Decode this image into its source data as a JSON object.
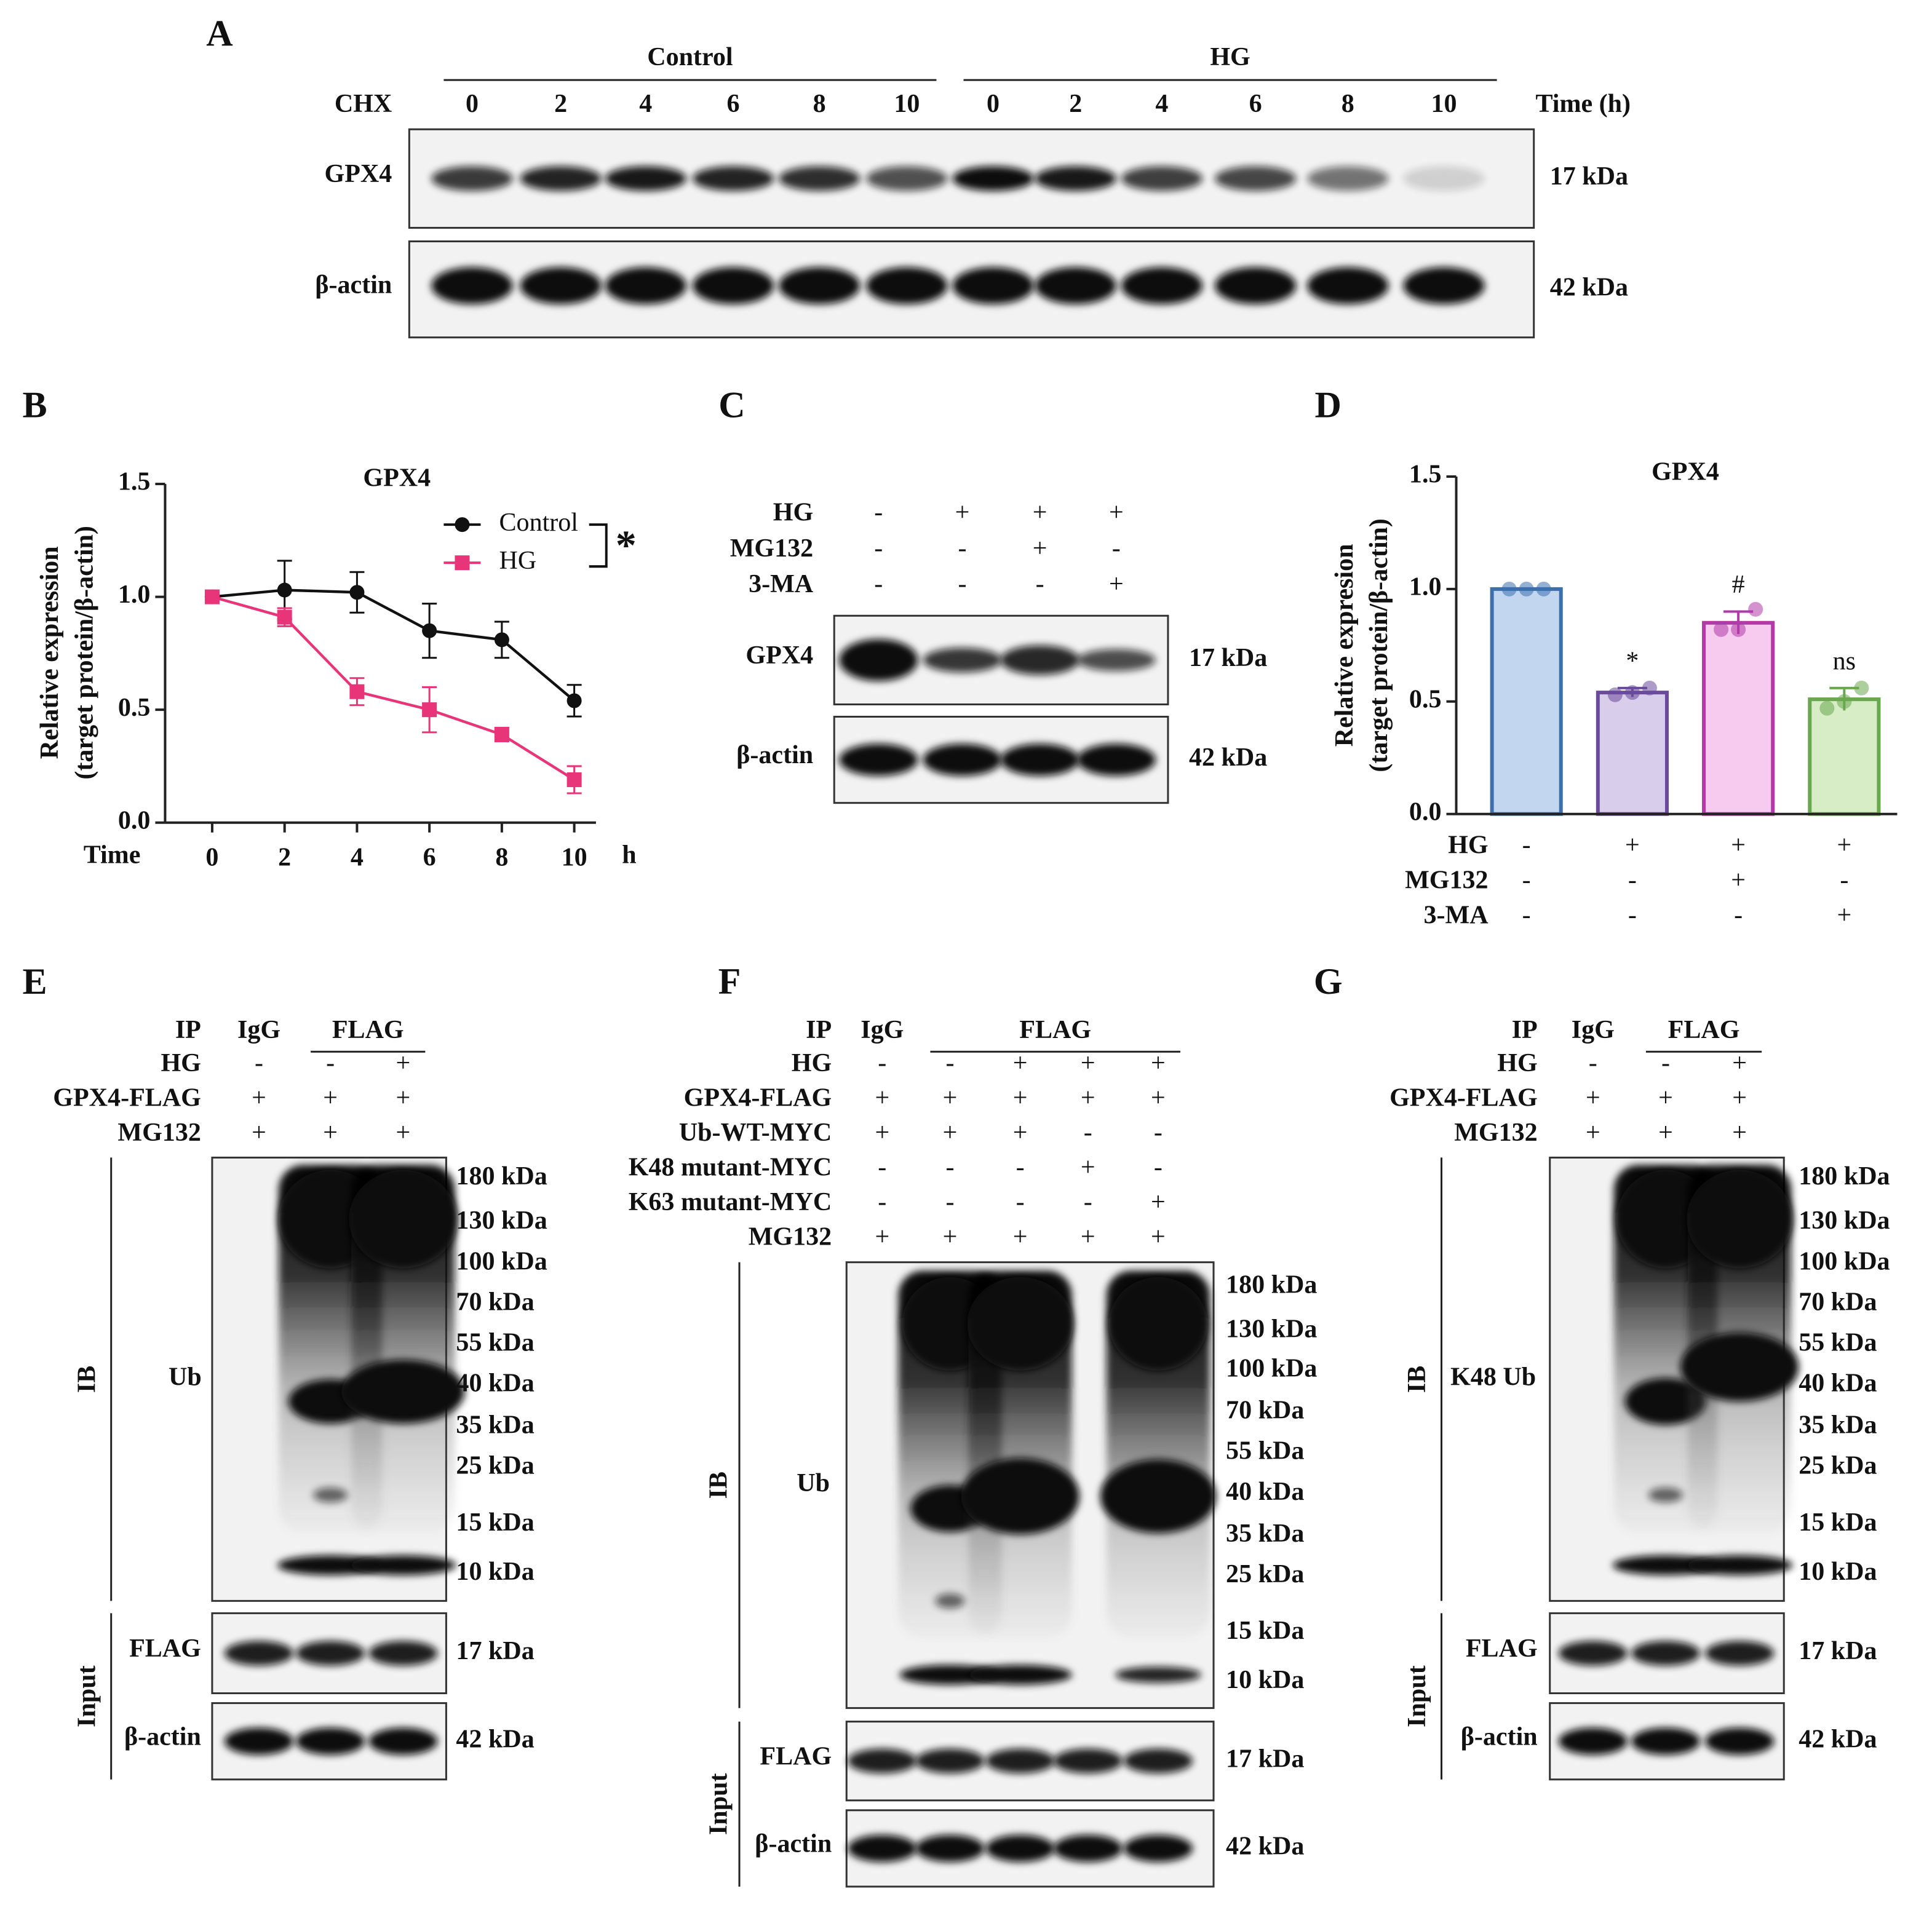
{
  "panel_A": {
    "label": "A",
    "treatment": "CHX",
    "time_unit": "Time (h)",
    "groups": [
      {
        "name": "Control",
        "times": [
          0,
          2,
          4,
          6,
          8,
          10
        ]
      },
      {
        "name": "HG",
        "times": [
          0,
          2,
          4,
          6,
          8,
          10
        ]
      }
    ],
    "blots": [
      {
        "protein": "GPX4",
        "size": "17 kDa"
      },
      {
        "protein": "β-actin",
        "size": "42 kDa"
      }
    ]
  },
  "chart_data": [
    {
      "type": "line",
      "panel_label": "B",
      "title": "GPX4",
      "ylabel": [
        "Relative expression",
        "(target protein/β-actin)"
      ],
      "xlabel": "Time",
      "xunit": "h",
      "x": [
        0,
        2,
        4,
        6,
        8,
        10
      ],
      "series": [
        {
          "name": "Control",
          "color": "#111111",
          "marker": "circle",
          "values": [
            1.0,
            1.03,
            1.02,
            0.85,
            0.81,
            0.54
          ],
          "errors": [
            0,
            0.13,
            0.09,
            0.12,
            0.08,
            0.07
          ]
        },
        {
          "name": "HG",
          "color": "#e8357a",
          "marker": "square",
          "values": [
            1.0,
            0.91,
            0.58,
            0.5,
            0.39,
            0.19
          ],
          "errors": [
            0,
            0.04,
            0.06,
            0.1,
            0.03,
            0.06
          ]
        }
      ],
      "xlim": [
        -1.3,
        10.6
      ],
      "xticks": [
        0,
        2,
        4,
        6,
        8,
        10
      ],
      "ylim": [
        0,
        1.5
      ],
      "yticks": [
        {
          "value": 0,
          "label": "0.0"
        },
        0.5,
        {
          "value": 1,
          "label": "1.0"
        },
        1.5
      ],
      "significance": "*",
      "legend": "upper right"
    },
    {
      "type": "bar",
      "panel_label": "D",
      "title": "GPX4",
      "ylabel": [
        "Relative expresion",
        "(target protein/β-actin)"
      ],
      "values": [
        1.0,
        0.54,
        0.85,
        0.51
      ],
      "errors": [
        0,
        0.02,
        0.05,
        0.05
      ],
      "points": [
        [
          1.0,
          1.0,
          1.0
        ],
        [
          0.53,
          0.54,
          0.56
        ],
        [
          0.82,
          0.82,
          0.91
        ],
        [
          0.47,
          0.5,
          0.56
        ]
      ],
      "annotations": [
        null,
        "*",
        "#",
        "ns"
      ],
      "colors": [
        "#c3d6ef",
        "#d9cdec",
        "#f6cbef",
        "#d6edc6"
      ],
      "edge_colors": [
        "#3d6fae",
        "#6a4a9a",
        "#b03aa8",
        "#6aa84f"
      ],
      "treatments": [
        {
          "name": "HG",
          "signs": [
            "-",
            "+",
            "+",
            "+"
          ]
        },
        {
          "name": "MG132",
          "signs": [
            "-",
            "-",
            "+",
            "-"
          ]
        },
        {
          "name": "3-MA",
          "signs": [
            "-",
            "-",
            "-",
            "+"
          ]
        }
      ],
      "ylim": [
        0,
        1.5
      ],
      "yticks": [
        {
          "value": 0,
          "label": "0.0"
        },
        0.5,
        {
          "value": 1,
          "label": "1.0"
        },
        1.5
      ]
    }
  ],
  "panel_C": {
    "label": "C",
    "conditions": [
      {
        "name": "HG",
        "signs": [
          "-",
          "+",
          "+",
          "+"
        ]
      },
      {
        "name": "MG132",
        "signs": [
          "-",
          "-",
          "+",
          "-"
        ]
      },
      {
        "name": "3-MA",
        "signs": [
          "-",
          "-",
          "-",
          "+"
        ]
      }
    ],
    "blots": [
      {
        "protein": "GPX4",
        "size": "17 kDa"
      },
      {
        "protein": "β-actin",
        "size": "42 kDa"
      }
    ]
  },
  "panel_E": {
    "label": "E",
    "ip": {
      "name": "IP",
      "groups": [
        "IgG",
        "FLAG"
      ]
    },
    "conditions": [
      {
        "name": "HG",
        "signs": [
          "-",
          "-",
          "+"
        ]
      },
      {
        "name": "GPX4-FLAG",
        "signs": [
          "+",
          "+",
          "+"
        ]
      },
      {
        "name": "MG132",
        "signs": [
          "+",
          "+",
          "+"
        ]
      }
    ],
    "ib": {
      "name": "IB",
      "protein": "Ub",
      "markers": [
        "180 kDa",
        "130 kDa",
        "100 kDa",
        "70 kDa",
        "55 kDa",
        "40 kDa",
        "35 kDa",
        "25 kDa",
        "15 kDa",
        "10 kDa"
      ]
    },
    "input": {
      "name": "Input",
      "blots": [
        {
          "protein": "FLAG",
          "size": "17 kDa"
        },
        {
          "protein": "β-actin",
          "size": "42 kDa"
        }
      ]
    }
  },
  "panel_F": {
    "label": "F",
    "ip": {
      "name": "IP",
      "groups": [
        "IgG",
        "FLAG"
      ]
    },
    "conditions": [
      {
        "name": "HG",
        "signs": [
          "-",
          "-",
          "+",
          "+",
          "+"
        ]
      },
      {
        "name": "GPX4-FLAG",
        "signs": [
          "+",
          "+",
          "+",
          "+",
          "+"
        ]
      },
      {
        "name": "Ub-WT-MYC",
        "signs": [
          "+",
          "+",
          "+",
          "-",
          "-"
        ]
      },
      {
        "name": "K48 mutant-MYC",
        "signs": [
          "-",
          "-",
          "-",
          "+",
          "-"
        ]
      },
      {
        "name": "K63 mutant-MYC",
        "signs": [
          "-",
          "-",
          "-",
          "-",
          "+"
        ]
      },
      {
        "name": "MG132",
        "signs": [
          "+",
          "+",
          "+",
          "+",
          "+"
        ]
      }
    ],
    "ib": {
      "name": "IB",
      "protein": "Ub",
      "markers": [
        "180 kDa",
        "130 kDa",
        "100 kDa",
        "70 kDa",
        "55 kDa",
        "40 kDa",
        "35 kDa",
        "25 kDa",
        "15 kDa",
        "10 kDa"
      ]
    },
    "input": {
      "name": "Input",
      "blots": [
        {
          "protein": "FLAG",
          "size": "17 kDa"
        },
        {
          "protein": "β-actin",
          "size": "42 kDa"
        }
      ]
    }
  },
  "panel_G": {
    "label": "G",
    "ip": {
      "name": "IP",
      "groups": [
        "IgG",
        "FLAG"
      ]
    },
    "conditions": [
      {
        "name": "HG",
        "signs": [
          "-",
          "-",
          "+"
        ]
      },
      {
        "name": "GPX4-FLAG",
        "signs": [
          "+",
          "+",
          "+"
        ]
      },
      {
        "name": "MG132",
        "signs": [
          "+",
          "+",
          "+"
        ]
      }
    ],
    "ib": {
      "name": "IB",
      "protein": "K48 Ub",
      "markers": [
        "180 kDa",
        "130 kDa",
        "100 kDa",
        "70 kDa",
        "55 kDa",
        "40 kDa",
        "35 kDa",
        "25 kDa",
        "15 kDa",
        "10 kDa"
      ]
    },
    "input": {
      "name": "Input",
      "blots": [
        {
          "protein": "FLAG",
          "size": "17 kDa"
        },
        {
          "protein": "β-actin",
          "size": "42 kDa"
        }
      ]
    }
  }
}
